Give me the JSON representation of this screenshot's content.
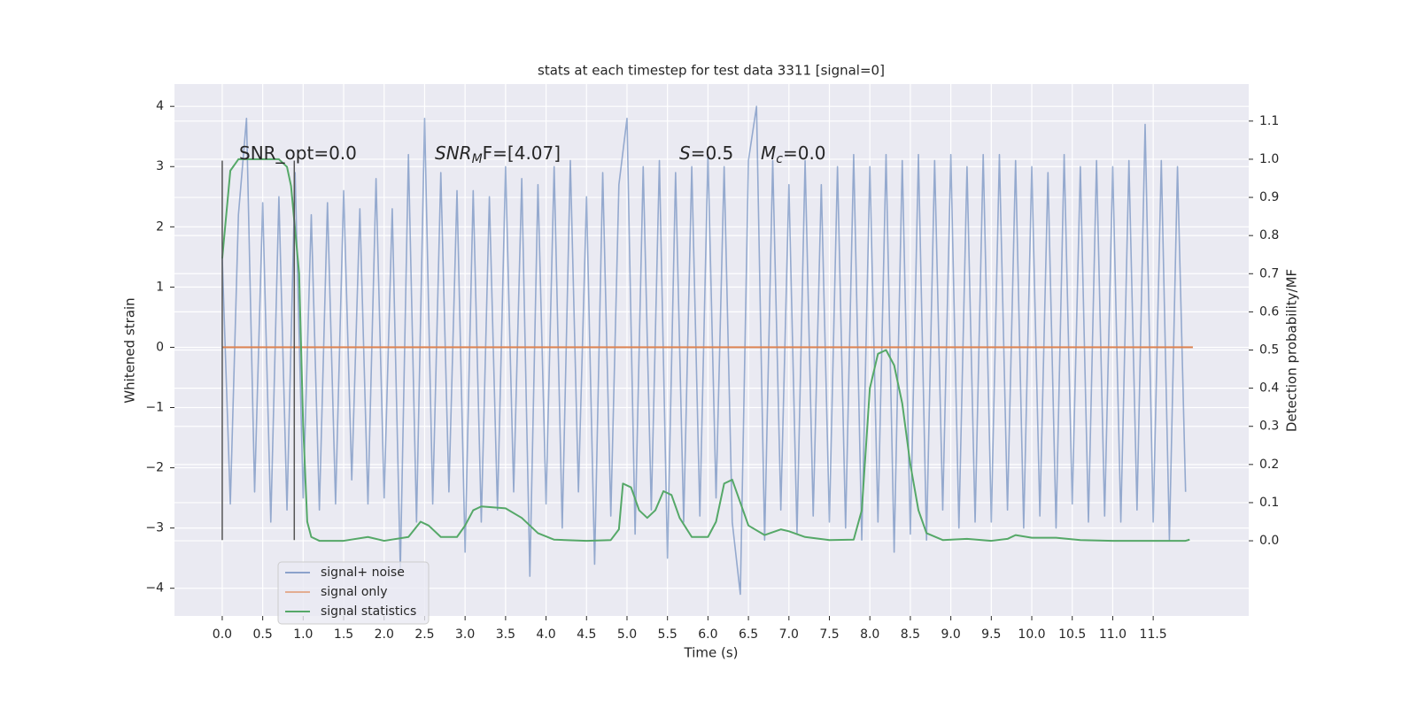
{
  "chart_data": {
    "type": "line",
    "title": "stats at each timestep for test data 3311 [signal=0]",
    "xlabel": "Time (s)",
    "ylabel": "Whitened strain",
    "y2label": "Detection probability/MF",
    "xlim": [
      -0.59,
      12.68
    ],
    "ylim": [
      -4.46,
      4.37
    ],
    "y2lim": [
      -0.197,
      1.197
    ],
    "xticks": [
      {
        "value": 0,
        "label": "0.0"
      },
      0.5,
      {
        "value": 1,
        "label": "1.0"
      },
      1.5,
      {
        "value": 2,
        "label": "2.0"
      },
      2.5,
      {
        "value": 3,
        "label": "3.0"
      },
      3.5,
      {
        "value": 4,
        "label": "4.0"
      },
      4.5,
      {
        "value": 5,
        "label": "5.0"
      },
      5.5,
      {
        "value": 6,
        "label": "6.0"
      },
      6.5,
      {
        "value": 7,
        "label": "7.0"
      },
      7.5,
      {
        "value": 8,
        "label": "8.0"
      },
      8.5,
      {
        "value": 9,
        "label": "9.0"
      },
      9.5,
      {
        "value": 10,
        "label": "10.0"
      },
      10.5,
      {
        "value": 11,
        "label": "11.0"
      },
      11.5
    ],
    "yticks": [
      {
        "value": -4,
        "label": "−4"
      },
      {
        "value": -3,
        "label": "−3"
      },
      {
        "value": -2,
        "label": "−2"
      },
      {
        "value": -1,
        "label": "−1"
      },
      0,
      1,
      2,
      3,
      4
    ],
    "y2ticks": [
      {
        "value": 0,
        "label": "0.0"
      },
      0.1,
      0.2,
      0.3,
      0.4,
      0.5,
      0.6,
      0.7,
      0.8,
      0.9,
      {
        "value": 1,
        "label": "1.0"
      },
      1.1
    ],
    "grid": true,
    "legend": "lower left",
    "series": [
      {
        "name": "signal+ noise",
        "color": "#4c72b0",
        "x": [
          0,
          0.1,
          0.2,
          0.3,
          0.4,
          0.5,
          0.6,
          0.7,
          0.8,
          0.9,
          1,
          1.1,
          1.2,
          1.3,
          1.4,
          1.5,
          1.6,
          1.7,
          1.8,
          1.9,
          2,
          2.1,
          2.2,
          2.3,
          2.4,
          2.5,
          2.6,
          2.7,
          2.8,
          2.9,
          3,
          3.1,
          3.2,
          3.3,
          3.4,
          3.5,
          3.6,
          3.7,
          3.8,
          3.9,
          4,
          4.1,
          4.2,
          4.3,
          4.4,
          4.5,
          4.6,
          4.7,
          4.8,
          4.9,
          5,
          5.1,
          5.2,
          5.3,
          5.4,
          5.5,
          5.6,
          5.7,
          5.8,
          5.9,
          6,
          6.1,
          6.2,
          6.3,
          6.4,
          6.5,
          6.6,
          6.7,
          6.8,
          6.9,
          7,
          7.1,
          7.2,
          7.3,
          7.4,
          7.5,
          7.6,
          7.7,
          7.8,
          7.9,
          8,
          8.1,
          8.2,
          8.3,
          8.4,
          8.5,
          8.6,
          8.7,
          8.8,
          8.9,
          9,
          9.1,
          9.2,
          9.3,
          9.4,
          9.5,
          9.6,
          9.7,
          9.8,
          9.9,
          10,
          10.1,
          10.2,
          10.3,
          10.4,
          10.5,
          10.6,
          10.7,
          10.8,
          10.9,
          11,
          11.1,
          11.2,
          11.3,
          11.4,
          11.5,
          11.6,
          11.7,
          11.8,
          11.9
        ],
        "values": [
          1.5,
          -2.6,
          2.2,
          3.8,
          -2.4,
          2.4,
          -2.9,
          2.5,
          -2.7,
          2.9,
          -2.5,
          2.2,
          -2.7,
          2.4,
          -2.6,
          2.6,
          -2.2,
          2.3,
          -2.6,
          2.8,
          -2.5,
          2.3,
          -3.7,
          3.2,
          -2.9,
          3.8,
          -2.6,
          2.9,
          -2.4,
          2.6,
          -3.4,
          2.6,
          -2.9,
          2.5,
          -2.7,
          3.0,
          -2.4,
          2.8,
          -3.8,
          2.7,
          -2.6,
          3.0,
          -3.0,
          3.1,
          -2.4,
          2.5,
          -3.6,
          2.9,
          -2.8,
          2.7,
          3.8,
          -3.1,
          3.0,
          -2.7,
          3.1,
          -3.5,
          2.9,
          -2.9,
          3.0,
          -2.8,
          3.2,
          -2.5,
          3.0,
          -2.9,
          -4.1,
          3.1,
          4.0,
          -3.2,
          3.1,
          -2.7,
          2.7,
          -3.1,
          3.1,
          -2.8,
          2.7,
          -2.9,
          3.0,
          -3.0,
          3.2,
          -3.2,
          3.0,
          -2.9,
          3.2,
          -3.4,
          3.1,
          -3.1,
          3.2,
          -3.2,
          3.1,
          -2.7,
          3.2,
          -3.0,
          3.0,
          -2.9,
          3.2,
          -2.9,
          3.2,
          -2.7,
          3.1,
          -3.0,
          3.0,
          -2.8,
          2.9,
          -3.0,
          3.2,
          -2.6,
          3.0,
          -2.9,
          3.1,
          -2.8,
          3.0,
          -2.9,
          3.1,
          -2.7,
          3.7,
          -2.9,
          3.1,
          -3.2,
          3.0,
          -2.4
        ]
      },
      {
        "name": "signal only",
        "color": "#dd8452",
        "x": [
          0,
          11.99
        ],
        "values": [
          0,
          0
        ]
      },
      {
        "name": "signal statistics",
        "color": "#55a868",
        "axis": "y2",
        "x": [
          0,
          0.1,
          0.2,
          0.7,
          0.8,
          0.85,
          0.95,
          1.0,
          1.05,
          1.1,
          1.2,
          1.5,
          1.8,
          2.0,
          2.3,
          2.45,
          2.55,
          2.7,
          2.9,
          3.0,
          3.1,
          3.2,
          3.5,
          3.7,
          3.9,
          4.1,
          4.5,
          4.8,
          4.9,
          4.95,
          5.05,
          5.15,
          5.25,
          5.35,
          5.45,
          5.55,
          5.65,
          5.8,
          6.0,
          6.1,
          6.2,
          6.3,
          6.4,
          6.5,
          6.7,
          6.9,
          7.0,
          7.2,
          7.5,
          7.8,
          7.9,
          8.0,
          8.1,
          8.2,
          8.3,
          8.4,
          8.5,
          8.6,
          8.7,
          8.9,
          9.2,
          9.5,
          9.7,
          9.8,
          10.0,
          10.3,
          10.6,
          11.0,
          11.5,
          11.9,
          11.95
        ],
        "values": [
          0.74,
          0.97,
          1.0,
          1.0,
          0.98,
          0.93,
          0.7,
          0.3,
          0.05,
          0.01,
          0.0,
          0.0,
          0.01,
          0.0,
          0.01,
          0.05,
          0.04,
          0.01,
          0.01,
          0.04,
          0.08,
          0.09,
          0.085,
          0.06,
          0.02,
          0.003,
          0.0,
          0.002,
          0.03,
          0.15,
          0.14,
          0.08,
          0.06,
          0.08,
          0.13,
          0.12,
          0.06,
          0.01,
          0.01,
          0.05,
          0.15,
          0.16,
          0.1,
          0.04,
          0.015,
          0.03,
          0.025,
          0.01,
          0.002,
          0.003,
          0.08,
          0.4,
          0.49,
          0.5,
          0.46,
          0.36,
          0.2,
          0.08,
          0.02,
          0.002,
          0.005,
          0.0,
          0.005,
          0.015,
          0.008,
          0.008,
          0.002,
          0.0,
          0.0,
          0.0,
          0.003
        ]
      }
    ],
    "vlines": [
      {
        "x": 0,
        "ymin": -3.2,
        "ymax": 3.1,
        "color": "#555555"
      },
      {
        "x": 0.89,
        "ymin": -3.2,
        "ymax": 3.1,
        "color": "#555555"
      }
    ],
    "annotations": [
      {
        "text": "SNR_opt=0.0"
      },
      {
        "math": "SNR",
        "sub": "M",
        "after": "F=[4.07]"
      },
      {
        "math": "S",
        "after": "=0.5"
      },
      {
        "math": "M",
        "sub": "c",
        "after": "=0.0"
      }
    ]
  }
}
